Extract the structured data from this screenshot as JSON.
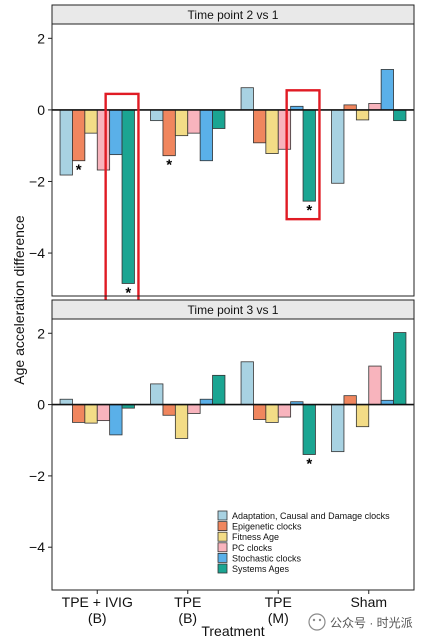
{
  "colors": {
    "series": [
      "#a8d2e2",
      "#f0865e",
      "#f3dc86",
      "#f8b4bd",
      "#5ab0e9",
      "#1ba592"
    ],
    "highlight": "#e01b24",
    "strip_bg": "#e9e9e9"
  },
  "chart_data": {
    "type": "bar",
    "ylabel": "Age acceleration difference",
    "xlabel": "Treatment",
    "categories": [
      "TPE + IVIG\n(B)",
      "TPE\n(B)",
      "TPE\n(M)",
      "Sham"
    ],
    "legend": {
      "placement": "bottom-right",
      "entries": [
        "Adaptation, Causal and Damage clocks",
        "Epigenetic clocks",
        "Fitness Age",
        "PC clocks",
        "Stochastic clocks",
        "Systems Ages"
      ]
    },
    "panels": [
      {
        "title": "Time point 2 vs 1",
        "ylim": [
          -5.2,
          2.4
        ],
        "yticks": [
          -4,
          -2,
          0,
          2
        ],
        "series": [
          {
            "name": "Adaptation, Causal and Damage clocks",
            "values": [
              -1.82,
              -0.3,
              0.62,
              -2.05
            ]
          },
          {
            "name": "Epigenetic clocks",
            "values": [
              -1.42,
              -1.28,
              -0.92,
              0.14
            ]
          },
          {
            "name": "Fitness Age",
            "values": [
              -0.65,
              -0.72,
              -1.22,
              -0.28
            ]
          },
          {
            "name": "PC clocks",
            "values": [
              -1.68,
              -0.65,
              -1.1,
              0.18
            ]
          },
          {
            "name": "Stochastic clocks",
            "values": [
              -1.25,
              -1.42,
              0.1,
              1.13
            ]
          },
          {
            "name": "Systems Ages",
            "values": [
              -4.85,
              -0.52,
              -2.55,
              -0.3
            ]
          }
        ],
        "significance": [
          {
            "category": 0,
            "series": 1,
            "label": "*"
          },
          {
            "category": 0,
            "series": 5,
            "label": "*"
          },
          {
            "category": 1,
            "series": 1,
            "label": "*"
          },
          {
            "category": 2,
            "series": 5,
            "label": "*"
          }
        ],
        "highlight_boxes": [
          {
            "category": 0,
            "series_from": 4,
            "series_to": 5
          },
          {
            "category": 2,
            "series_from": 4,
            "series_to": 5
          }
        ]
      },
      {
        "title": "Time point 3 vs 1",
        "ylim": [
          -5.2,
          2.4
        ],
        "yticks": [
          -4,
          -2,
          0,
          2
        ],
        "series": [
          {
            "name": "Adaptation, Causal and Damage clocks",
            "values": [
              0.15,
              0.58,
              1.2,
              -1.32
            ]
          },
          {
            "name": "Epigenetic clocks",
            "values": [
              -0.5,
              -0.3,
              -0.42,
              0.25
            ]
          },
          {
            "name": "Fitness Age",
            "values": [
              -0.52,
              -0.95,
              -0.5,
              -0.62
            ]
          },
          {
            "name": "PC clocks",
            "values": [
              -0.45,
              -0.25,
              -0.35,
              1.08
            ]
          },
          {
            "name": "Stochastic clocks",
            "values": [
              -0.85,
              0.15,
              0.08,
              0.12
            ]
          },
          {
            "name": "Systems Ages",
            "values": [
              -0.1,
              0.82,
              -1.4,
              2.02
            ]
          }
        ],
        "significance": [
          {
            "category": 2,
            "series": 5,
            "label": "*"
          }
        ],
        "highlight_boxes": []
      }
    ]
  },
  "watermark": "公众号 · 时光派"
}
